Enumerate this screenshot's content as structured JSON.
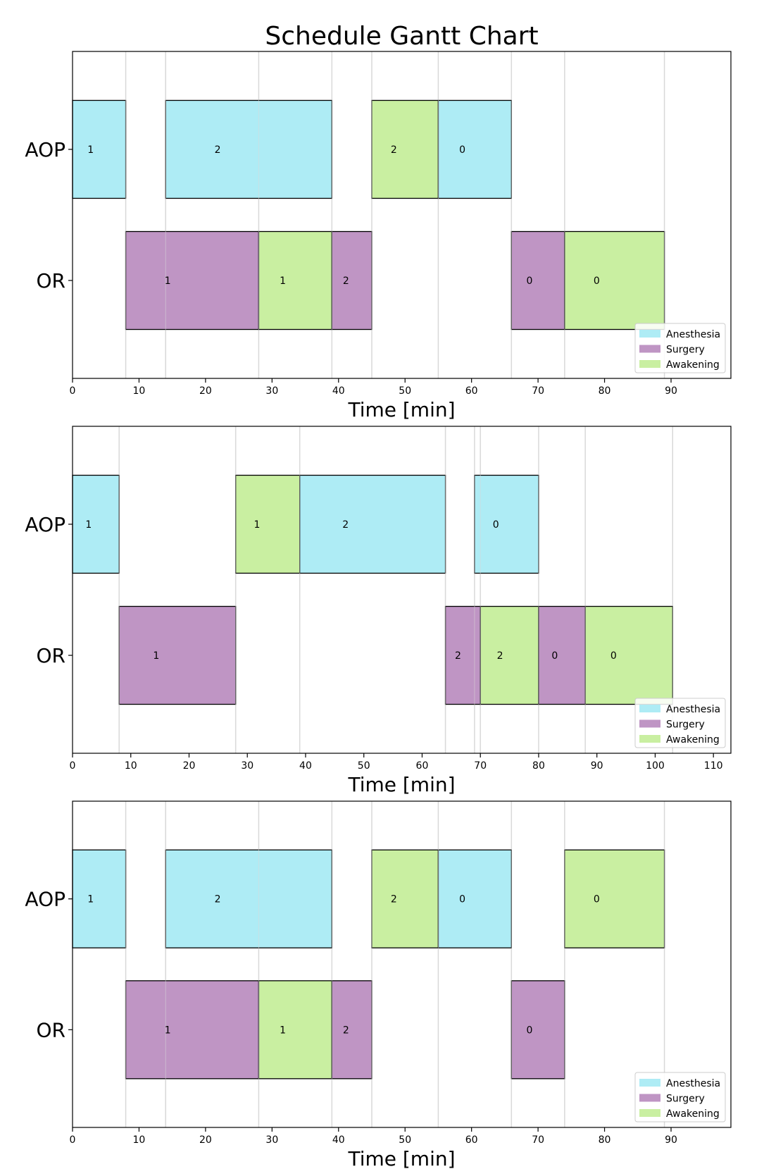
{
  "colors": {
    "Anesthesia": "#aeecf5",
    "Surgery": "#bf95c4",
    "Awakening": "#c9efa1",
    "grid": "#d9d9d9",
    "edge": "#000000"
  },
  "chart_data": [
    {
      "type": "gantt",
      "title": "Schedule Gantt Chart",
      "xlabel": "Time [min]",
      "xlim": [
        0,
        99
      ],
      "xticks": [
        0,
        10,
        20,
        30,
        40,
        50,
        60,
        70,
        80,
        90
      ],
      "rows": [
        "AOP",
        "OR"
      ],
      "legend": [
        "Anesthesia",
        "Surgery",
        "Awakening"
      ],
      "legend_position": "lower-right",
      "gridlines": [
        8,
        14,
        28,
        39,
        45,
        55,
        66,
        74,
        89
      ],
      "tasks": [
        {
          "row": "AOP",
          "start": 0,
          "end": 8,
          "phase": "Anesthesia",
          "label": "1"
        },
        {
          "row": "AOP",
          "start": 14,
          "end": 39,
          "phase": "Anesthesia",
          "label": "2"
        },
        {
          "row": "AOP",
          "start": 45,
          "end": 55,
          "phase": "Awakening",
          "label": "2"
        },
        {
          "row": "AOP",
          "start": 55,
          "end": 66,
          "phase": "Anesthesia",
          "label": "0"
        },
        {
          "row": "OR",
          "start": 8,
          "end": 28,
          "phase": "Surgery",
          "label": "1"
        },
        {
          "row": "OR",
          "start": 28,
          "end": 39,
          "phase": "Awakening",
          "label": "1"
        },
        {
          "row": "OR",
          "start": 39,
          "end": 45,
          "phase": "Surgery",
          "label": "2"
        },
        {
          "row": "OR",
          "start": 66,
          "end": 74,
          "phase": "Surgery",
          "label": "0"
        },
        {
          "row": "OR",
          "start": 74,
          "end": 89,
          "phase": "Awakening",
          "label": "0"
        }
      ]
    },
    {
      "type": "gantt",
      "title": "",
      "xlabel": "Time [min]",
      "xlim": [
        0,
        113
      ],
      "xticks": [
        0,
        10,
        20,
        30,
        40,
        50,
        60,
        70,
        80,
        90,
        100,
        110
      ],
      "rows": [
        "AOP",
        "OR"
      ],
      "legend": [
        "Anesthesia",
        "Surgery",
        "Awakening"
      ],
      "legend_position": "lower-right",
      "gridlines": [
        8,
        28,
        39,
        64,
        69,
        70,
        80,
        88,
        103
      ],
      "tasks": [
        {
          "row": "AOP",
          "start": 0,
          "end": 8,
          "phase": "Anesthesia",
          "label": "1"
        },
        {
          "row": "AOP",
          "start": 28,
          "end": 39,
          "phase": "Awakening",
          "label": "1"
        },
        {
          "row": "AOP",
          "start": 39,
          "end": 64,
          "phase": "Anesthesia",
          "label": "2"
        },
        {
          "row": "AOP",
          "start": 69,
          "end": 80,
          "phase": "Anesthesia",
          "label": "0"
        },
        {
          "row": "OR",
          "start": 8,
          "end": 28,
          "phase": "Surgery",
          "label": "1"
        },
        {
          "row": "OR",
          "start": 64,
          "end": 70,
          "phase": "Surgery",
          "label": "2"
        },
        {
          "row": "OR",
          "start": 70,
          "end": 80,
          "phase": "Awakening",
          "label": "2"
        },
        {
          "row": "OR",
          "start": 80,
          "end": 88,
          "phase": "Surgery",
          "label": "0"
        },
        {
          "row": "OR",
          "start": 88,
          "end": 103,
          "phase": "Awakening",
          "label": "0"
        }
      ]
    },
    {
      "type": "gantt",
      "title": "",
      "xlabel": "Time [min]",
      "xlim": [
        0,
        99
      ],
      "xticks": [
        0,
        10,
        20,
        30,
        40,
        50,
        60,
        70,
        80,
        90
      ],
      "rows": [
        "AOP",
        "OR"
      ],
      "legend": [
        "Anesthesia",
        "Surgery",
        "Awakening"
      ],
      "legend_position": "lower-right",
      "gridlines": [
        8,
        14,
        28,
        39,
        45,
        55,
        66,
        74,
        89
      ],
      "tasks": [
        {
          "row": "AOP",
          "start": 0,
          "end": 8,
          "phase": "Anesthesia",
          "label": "1"
        },
        {
          "row": "AOP",
          "start": 14,
          "end": 39,
          "phase": "Anesthesia",
          "label": "2"
        },
        {
          "row": "AOP",
          "start": 45,
          "end": 55,
          "phase": "Awakening",
          "label": "2"
        },
        {
          "row": "AOP",
          "start": 55,
          "end": 66,
          "phase": "Anesthesia",
          "label": "0"
        },
        {
          "row": "AOP",
          "start": 74,
          "end": 89,
          "phase": "Awakening",
          "label": "0"
        },
        {
          "row": "OR",
          "start": 8,
          "end": 28,
          "phase": "Surgery",
          "label": "1"
        },
        {
          "row": "OR",
          "start": 28,
          "end": 39,
          "phase": "Awakening",
          "label": "1"
        },
        {
          "row": "OR",
          "start": 39,
          "end": 45,
          "phase": "Surgery",
          "label": "2"
        },
        {
          "row": "OR",
          "start": 66,
          "end": 74,
          "phase": "Surgery",
          "label": "0"
        }
      ]
    }
  ]
}
